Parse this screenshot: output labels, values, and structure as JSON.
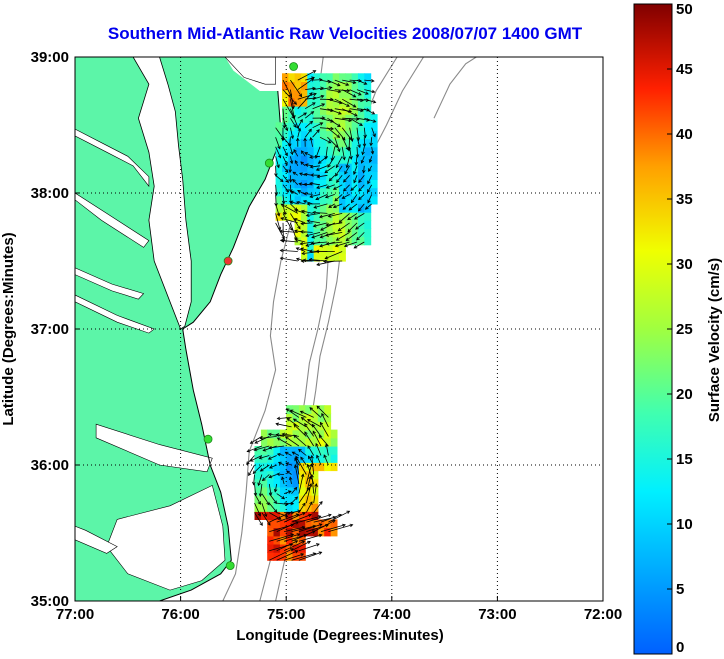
{
  "chart_data": {
    "type": "heatmap",
    "title": "Southern Mid-Atlantic Raw Velocities 2008/07/07 1400 GMT",
    "xlabel": "Longitude (Degrees:Minutes)",
    "ylabel": "Latitude (Degrees:Minutes)",
    "x_ticks": [
      {
        "value": -77,
        "label": "77:00"
      },
      {
        "value": -76,
        "label": "76:00"
      },
      {
        "value": -75,
        "label": "75:00"
      },
      {
        "value": -74,
        "label": "74:00"
      },
      {
        "value": -73,
        "label": "73:00"
      },
      {
        "value": -72,
        "label": "72:00"
      }
    ],
    "y_ticks": [
      {
        "value": 39,
        "label": "39:00"
      },
      {
        "value": 38,
        "label": "38:00"
      },
      {
        "value": 37,
        "label": "37:00"
      },
      {
        "value": 36,
        "label": "36:00"
      },
      {
        "value": 35,
        "label": "35:00"
      }
    ],
    "xlim": [
      -77,
      -72
    ],
    "ylim": [
      35,
      39
    ],
    "grid": true,
    "colorbar": {
      "label": "Surface Velocity (cm/s)",
      "range": [
        0,
        50
      ],
      "ticks": [
        0,
        5,
        10,
        15,
        20,
        25,
        30,
        35,
        40,
        45,
        50
      ],
      "colormap": "jet"
    },
    "colors": {
      "land": "#5cf5a8",
      "contour": "#8a8a8a",
      "title": "#0000ee",
      "site_marker": "#33dd33",
      "site_marker_off": "#ee3333"
    },
    "radar_sites": [
      {
        "lon": -74.93,
        "lat": 38.93,
        "status": "active"
      },
      {
        "lon": -75.16,
        "lat": 38.22,
        "status": "active"
      },
      {
        "lon": -75.55,
        "lat": 37.5,
        "status": "inactive"
      },
      {
        "lon": -75.74,
        "lat": 36.19,
        "status": "active"
      },
      {
        "lon": -75.53,
        "lat": 35.26,
        "status": "active"
      }
    ],
    "north_field": {
      "lon_range": [
        -75.1,
        -74.15
      ],
      "lat_range": [
        37.5,
        38.9
      ],
      "typical_speed_range": [
        8,
        35
      ],
      "dominant_direction": "cyclonic eddy, southeastward flow"
    },
    "south_field": {
      "lon_range": [
        -75.3,
        -74.55
      ],
      "lat_range": [
        35.3,
        36.4
      ],
      "typical_speed_range": [
        10,
        50
      ],
      "dominant_direction": "northeastward jet near Cape Hatteras"
    }
  }
}
